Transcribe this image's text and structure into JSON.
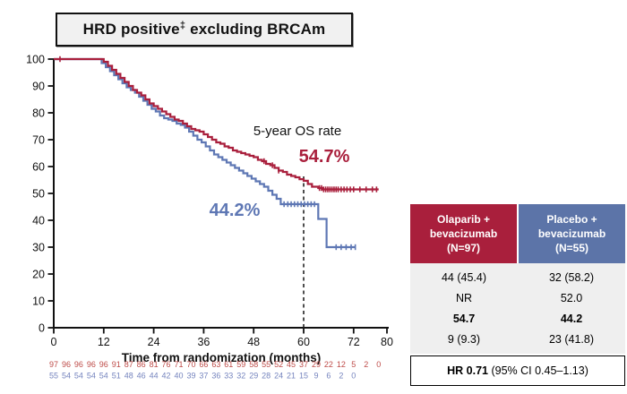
{
  "title": {
    "prefix": "HRD positive",
    "sup": "‡",
    "suffix": " excluding BRCAm"
  },
  "chart_data": {
    "type": "line",
    "subtype": "kaplan-meier-step",
    "title": "HRD positive excluding BRCAm",
    "xlabel": "Time from randomization (months)",
    "ylabel": "",
    "xlim": [
      0,
      80
    ],
    "ylim": [
      0,
      100
    ],
    "x_ticks": [
      0,
      12,
      24,
      36,
      48,
      60,
      72,
      80
    ],
    "y_ticks": [
      0,
      10,
      20,
      30,
      40,
      50,
      60,
      70,
      80,
      90,
      100
    ],
    "grid": false,
    "dashed_reference_month": 60,
    "annotation": {
      "label": "5-year OS rate",
      "olaparib_rate": "54.7%",
      "placebo_rate": "44.2%"
    },
    "series": [
      {
        "name": "Placebo + bevacizumab",
        "color": "#5e77b4",
        "steps": [
          [
            11.5,
            98.5
          ],
          [
            12.5,
            97
          ],
          [
            13.5,
            95.5
          ],
          [
            14.5,
            94
          ],
          [
            15.5,
            92.5
          ],
          [
            16.5,
            91
          ],
          [
            17.5,
            89.5
          ],
          [
            18.5,
            88.5
          ],
          [
            19.5,
            87.5
          ],
          [
            20.5,
            86
          ],
          [
            21.5,
            84.5
          ],
          [
            22.5,
            83
          ],
          [
            23.5,
            81.5
          ],
          [
            24.5,
            80.5
          ],
          [
            25.5,
            79
          ],
          [
            26.5,
            78
          ],
          [
            27.5,
            77.5
          ],
          [
            28.5,
            77
          ],
          [
            29.5,
            76
          ],
          [
            30.5,
            75.5
          ],
          [
            31.5,
            74.5
          ],
          [
            32.5,
            73
          ],
          [
            33.5,
            71.5
          ],
          [
            34.5,
            70
          ],
          [
            35.5,
            69
          ],
          [
            36.5,
            67.5
          ],
          [
            37.5,
            66
          ],
          [
            38.5,
            64.5
          ],
          [
            39.5,
            63.5
          ],
          [
            40.5,
            62.5
          ],
          [
            41.5,
            61.5
          ],
          [
            42.5,
            60.5
          ],
          [
            43.5,
            59.5
          ],
          [
            44.5,
            58.5
          ],
          [
            45.5,
            57.5
          ],
          [
            46.5,
            56.5
          ],
          [
            47.5,
            55.5
          ],
          [
            48.5,
            54.5
          ],
          [
            49.5,
            53.5
          ],
          [
            50.5,
            52.5
          ],
          [
            51.5,
            51
          ],
          [
            52.5,
            49.5
          ],
          [
            53.5,
            48
          ],
          [
            54.5,
            46
          ],
          [
            63.5,
            40.5
          ],
          [
            65.5,
            30
          ],
          [
            72.5,
            30
          ]
        ],
        "censor_months": [
          55.3,
          56.2,
          57,
          57.8,
          58.6,
          59.4,
          60.2,
          61,
          61.8,
          62.6,
          67.8,
          69,
          70.2,
          71.4,
          72.4
        ]
      },
      {
        "name": "Olaparib + bevacizumab",
        "color": "#a91f3c",
        "steps": [
          [
            12,
            99
          ],
          [
            13,
            97.5
          ],
          [
            14,
            96
          ],
          [
            15,
            94.5
          ],
          [
            16,
            93
          ],
          [
            17,
            91.5
          ],
          [
            18,
            90
          ],
          [
            19,
            88.5
          ],
          [
            20,
            87.5
          ],
          [
            21,
            86.5
          ],
          [
            22,
            85
          ],
          [
            23,
            83.5
          ],
          [
            24,
            82.5
          ],
          [
            25,
            81.5
          ],
          [
            26,
            80.5
          ],
          [
            27,
            79.5
          ],
          [
            28,
            78.5
          ],
          [
            29,
            77.5
          ],
          [
            30,
            77
          ],
          [
            31,
            76
          ],
          [
            32,
            75
          ],
          [
            33,
            74
          ],
          [
            34,
            73.5
          ],
          [
            35,
            73
          ],
          [
            36,
            72
          ],
          [
            37,
            71
          ],
          [
            38,
            70
          ],
          [
            39,
            69
          ],
          [
            40,
            68.5
          ],
          [
            41,
            67.5
          ],
          [
            42,
            67
          ],
          [
            43,
            66
          ],
          [
            44,
            65.5
          ],
          [
            45,
            65
          ],
          [
            46,
            64.5
          ],
          [
            47,
            64
          ],
          [
            48,
            63.5
          ],
          [
            49,
            62.5
          ],
          [
            50,
            62
          ],
          [
            51,
            61
          ],
          [
            52,
            60.5
          ],
          [
            53,
            59.5
          ],
          [
            54,
            58.5
          ],
          [
            55,
            58
          ],
          [
            56,
            57
          ],
          [
            57,
            56.5
          ],
          [
            58,
            56
          ],
          [
            59,
            55.3
          ],
          [
            60,
            54.7
          ],
          [
            61,
            53.5
          ],
          [
            62,
            52.5
          ],
          [
            63.5,
            52
          ],
          [
            64.5,
            51.5
          ],
          [
            78,
            51.5
          ]
        ],
        "censor_months": [
          1.5,
          50.5,
          52.5,
          54,
          63.8,
          64.3,
          64.8,
          65.3,
          65.8,
          66.3,
          66.8,
          67.3,
          67.8,
          68.3,
          69,
          69.7,
          70.4,
          71.2,
          72,
          73.5,
          75,
          76.5,
          77.5
        ]
      }
    ],
    "at_risk": {
      "start_month": 0,
      "interval_months": 3,
      "rows": [
        {
          "name": "Olaparib + bevacizumab at risk",
          "color": "#be4b48",
          "values": [
            97,
            96,
            96,
            96,
            96,
            91,
            87,
            86,
            81,
            76,
            71,
            70,
            66,
            63,
            61,
            59,
            58,
            55,
            52,
            45,
            37,
            29,
            22,
            12,
            5,
            2,
            0
          ]
        },
        {
          "name": "Placebo + bevacizumab at risk",
          "color": "#7584be",
          "values": [
            55,
            54,
            54,
            54,
            54,
            51,
            48,
            46,
            44,
            42,
            40,
            39,
            37,
            36,
            33,
            32,
            29,
            28,
            24,
            21,
            15,
            9,
            6,
            2,
            0
          ]
        }
      ]
    }
  },
  "table": {
    "columns": [
      {
        "label": "Olaparib +\nbevacizumab\n(N=97)",
        "color": "#a91f3c"
      },
      {
        "label": "Placebo +\nbevacizumab\n(N=55)",
        "color": "#5c74a8"
      }
    ],
    "rows": [
      {
        "values": [
          "44 (45.4)",
          "32 (58.2)"
        ],
        "bold": false
      },
      {
        "values": [
          "NR",
          "52.0"
        ],
        "bold": false
      },
      {
        "values": [
          "54.7",
          "44.2"
        ],
        "bold": true
      },
      {
        "values": [
          "9 (9.3)",
          "23 (41.8)"
        ],
        "bold": false
      }
    ]
  },
  "hr_box": {
    "bold_part": "HR 0.71",
    "rest_part": " (95% CI 0.45–1.13)"
  }
}
